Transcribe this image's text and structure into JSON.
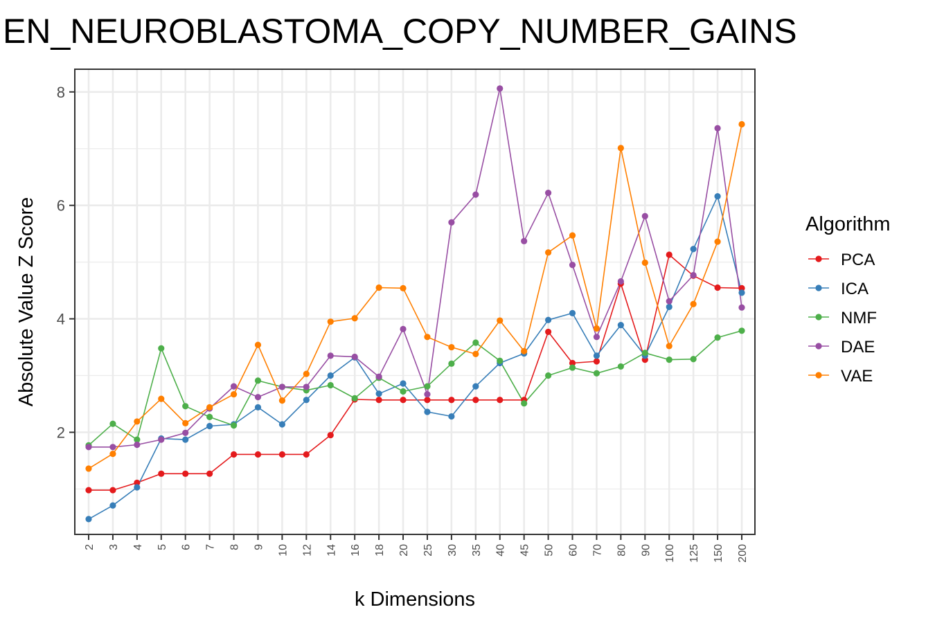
{
  "chart_data": {
    "type": "line",
    "title": "EN_NEUROBLASTOMA_COPY_NUMBER_GAINS",
    "xlabel": "k Dimensions",
    "ylabel": "Absolute Value Z Score",
    "categories": [
      "2",
      "3",
      "4",
      "5",
      "6",
      "7",
      "8",
      "9",
      "10",
      "12",
      "14",
      "16",
      "18",
      "20",
      "25",
      "30",
      "35",
      "40",
      "45",
      "50",
      "60",
      "70",
      "80",
      "90",
      "100",
      "125",
      "150",
      "200"
    ],
    "ylim": [
      0.2,
      8.4
    ],
    "yticks": [
      2,
      4,
      6,
      8
    ],
    "grid": true,
    "legend": {
      "title": "Algorithm",
      "position": "right"
    },
    "series": [
      {
        "name": "PCA",
        "color": "#E41A1C",
        "values": [
          0.98,
          0.98,
          1.11,
          1.27,
          1.27,
          1.27,
          1.61,
          1.61,
          1.61,
          1.61,
          1.95,
          2.58,
          2.57,
          2.57,
          2.57,
          2.57,
          2.57,
          2.57,
          2.57,
          3.77,
          3.22,
          3.25,
          4.62,
          3.28,
          5.13,
          4.76,
          4.55,
          4.54
        ]
      },
      {
        "name": "ICA",
        "color": "#377EB8",
        "values": [
          0.47,
          0.71,
          1.03,
          1.89,
          1.87,
          2.11,
          2.14,
          2.44,
          2.14,
          2.57,
          3.0,
          3.32,
          2.68,
          2.86,
          2.36,
          2.28,
          2.81,
          3.22,
          3.39,
          3.98,
          4.1,
          3.35,
          3.89,
          3.35,
          4.21,
          5.23,
          6.16,
          4.46
        ]
      },
      {
        "name": "NMF",
        "color": "#4DAF4A",
        "values": [
          1.77,
          2.15,
          1.87,
          3.48,
          2.46,
          2.27,
          2.12,
          2.91,
          2.8,
          2.74,
          2.83,
          2.6,
          2.96,
          2.72,
          2.81,
          3.21,
          3.58,
          3.26,
          2.51,
          3.0,
          3.14,
          3.04,
          3.16,
          3.4,
          3.28,
          3.29,
          3.67,
          3.79
        ]
      },
      {
        "name": "DAE",
        "color": "#984EA3",
        "values": [
          1.74,
          1.74,
          1.78,
          1.87,
          1.99,
          2.42,
          2.81,
          2.62,
          2.8,
          2.8,
          3.35,
          3.33,
          2.98,
          3.82,
          2.67,
          5.7,
          6.19,
          8.06,
          5.37,
          6.22,
          4.95,
          3.68,
          4.66,
          5.81,
          4.31,
          4.77,
          7.36,
          4.2
        ]
      },
      {
        "name": "VAE",
        "color": "#FF7F00",
        "values": [
          1.36,
          1.62,
          2.19,
          2.59,
          2.16,
          2.44,
          2.67,
          3.54,
          2.56,
          3.03,
          3.95,
          4.01,
          4.55,
          4.54,
          3.68,
          3.5,
          3.38,
          3.97,
          3.43,
          5.17,
          5.47,
          3.83,
          7.01,
          4.99,
          3.52,
          4.26,
          5.36,
          7.43
        ]
      }
    ]
  }
}
